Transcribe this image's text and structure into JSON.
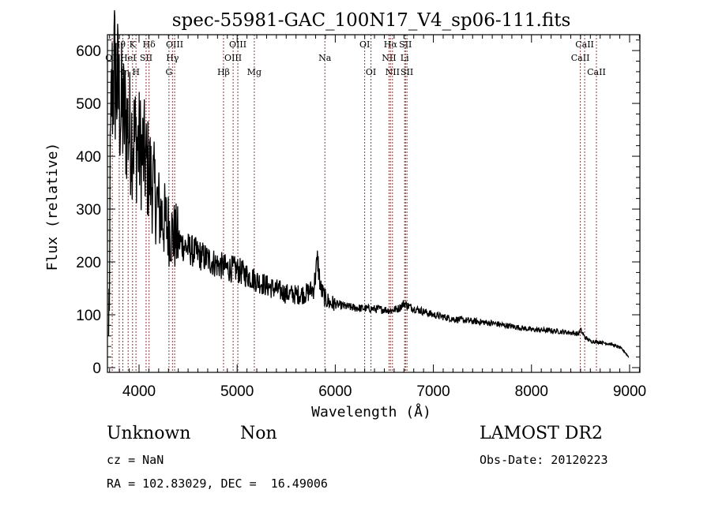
{
  "chart_data": {
    "type": "line",
    "title": "spec-55981-GAC_100N17_V4_sp06-111.fits",
    "xlabel": "Wavelength (Å)",
    "ylabel": "Flux (relative)",
    "xlim": [
      3678,
      9105
    ],
    "ylim": [
      -9,
      630
    ],
    "x_ticks": [
      4000,
      5000,
      6000,
      7000,
      8000,
      9000
    ],
    "x_tick_labels": [
      "4000",
      "5000",
      "6000",
      "7000",
      "8000",
      "9000"
    ],
    "y_ticks": [
      0,
      100,
      200,
      300,
      400,
      500,
      600
    ],
    "y_tick_labels": [
      "0",
      "100",
      "200",
      "300",
      "400",
      "500",
      "600"
    ],
    "grid": false,
    "series": [
      {
        "name": "flux",
        "color": "#000000",
        "x": [
          3690,
          3700,
          3720,
          3750,
          3780,
          3800,
          3830,
          3860,
          3900,
          3930,
          3960,
          3990,
          4020,
          4050,
          4080,
          4120,
          4160,
          4200,
          4250,
          4300,
          4350,
          4400,
          4450,
          4500,
          4600,
          4700,
          4800,
          4900,
          5000,
          5100,
          5200,
          5300,
          5400,
          5500,
          5600,
          5700,
          5780,
          5820,
          5850,
          5900,
          5950,
          6000,
          6100,
          6200,
          6300,
          6400,
          6500,
          6560,
          6650,
          6700,
          6750,
          6800,
          6900,
          7000,
          7200,
          7400,
          7600,
          7800,
          8000,
          8200,
          8400,
          8480,
          8500,
          8540,
          8600,
          8700,
          8800,
          8900,
          8950,
          8990
        ],
        "y": [
          80,
          300,
          520,
          560,
          530,
          500,
          480,
          470,
          450,
          440,
          430,
          420,
          410,
          400,
          380,
          360,
          330,
          300,
          280,
          265,
          250,
          240,
          232,
          225,
          215,
          205,
          195,
          188,
          185,
          175,
          165,
          155,
          148,
          140,
          138,
          140,
          150,
          205,
          150,
          130,
          122,
          120,
          116,
          113,
          112,
          111,
          110,
          108,
          112,
          122,
          116,
          112,
          106,
          100,
          92,
          88,
          84,
          78,
          72,
          70,
          66,
          64,
          72,
          58,
          50,
          48,
          45,
          38,
          30,
          20
        ]
      }
    ],
    "spectral_lines": [
      {
        "label": "OII",
        "wavelength": 3727,
        "row": 2
      },
      {
        "label": "Hθ",
        "wavelength": 3798,
        "row": 1
      },
      {
        "label": "Hη",
        "wavelength": 3835,
        "row": 3
      },
      {
        "label": "HeI",
        "wavelength": 3889,
        "row": 2
      },
      {
        "label": "K",
        "wavelength": 3934,
        "row": 1
      },
      {
        "label": "H",
        "wavelength": 3969,
        "row": 3
      },
      {
        "label": "SII",
        "wavelength": 4072,
        "row": 2
      },
      {
        "label": "Hδ",
        "wavelength": 4102,
        "row": 1
      },
      {
        "label": "G",
        "wavelength": 4305,
        "row": 3
      },
      {
        "label": "Hγ",
        "wavelength": 4341,
        "row": 2
      },
      {
        "label": "OIII",
        "wavelength": 4363,
        "row": 1
      },
      {
        "label": "Hβ",
        "wavelength": 4861,
        "row": 3
      },
      {
        "label": "OIII",
        "wavelength": 4959,
        "row": 2
      },
      {
        "label": "OIII",
        "wavelength": 5007,
        "row": 1
      },
      {
        "label": "Mg",
        "wavelength": 5175,
        "row": 3
      },
      {
        "label": "Na",
        "wavelength": 5894,
        "row": 2
      },
      {
        "label": "OI",
        "wavelength": 6300,
        "row": 1
      },
      {
        "label": "OI",
        "wavelength": 6364,
        "row": 3
      },
      {
        "label": "NII",
        "wavelength": 6548,
        "row": 2
      },
      {
        "label": "Hα",
        "wavelength": 6563,
        "row": 1
      },
      {
        "label": "NII",
        "wavelength": 6583,
        "row": 3
      },
      {
        "label": "Li",
        "wavelength": 6707,
        "row": 2
      },
      {
        "label": "SII",
        "wavelength": 6716,
        "row": 1
      },
      {
        "label": "SII",
        "wavelength": 6731,
        "row": 3
      },
      {
        "label": "CaII",
        "wavelength": 8498,
        "row": 2
      },
      {
        "label": "CaII",
        "wavelength": 8542,
        "row": 1
      },
      {
        "label": "CaII",
        "wavelength": 8662,
        "row": 3
      }
    ],
    "line_marker_color": "#8b3a3a"
  },
  "info": {
    "class": "Unknown",
    "subclass": "Non",
    "cz": "cz = NaN",
    "coords": "RA = 102.83029, DEC =  16.49006",
    "survey": "LAMOST DR2",
    "obs_date": "Obs-Date: 20120223"
  }
}
